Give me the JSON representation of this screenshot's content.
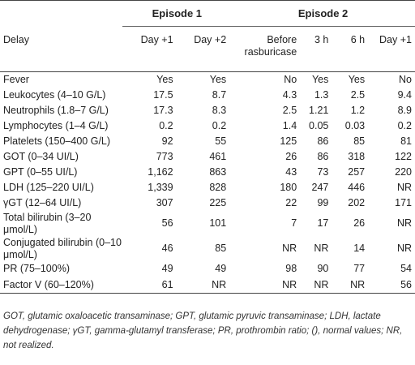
{
  "header": {
    "episode1": "Episode 1",
    "episode2": "Episode 2",
    "delay_label": "Delay",
    "delays": [
      "Day +1",
      "Day +2",
      "Before rasburicase",
      "3 h",
      "6 h",
      "Day +1"
    ]
  },
  "rows": [
    {
      "label": "Fever",
      "values": [
        "Yes",
        "Yes",
        "No",
        "Yes",
        "Yes",
        "No"
      ]
    },
    {
      "label": "Leukocytes (4–10 G/L)",
      "values": [
        "17.5",
        "8.7",
        "4.3",
        "1.3",
        "2.5",
        "9.4"
      ]
    },
    {
      "label": "Neutrophils (1.8–7 G/L)",
      "values": [
        "17.3",
        "8.3",
        "2.5",
        "1.21",
        "1.2",
        "8.9"
      ]
    },
    {
      "label": "Lymphocytes (1–4 G/L)",
      "values": [
        "0.2",
        "0.2",
        "1.4",
        "0.05",
        "0.03",
        "0.2"
      ]
    },
    {
      "label": "Platelets (150–400 G/L)",
      "values": [
        "92",
        "55",
        "125",
        "86",
        "85",
        "81"
      ]
    },
    {
      "label": "GOT (0–34 UI/L)",
      "values": [
        "773",
        "461",
        "26",
        "86",
        "318",
        "122"
      ]
    },
    {
      "label": "GPT (0–55 UI/L)",
      "values": [
        "1,162",
        "863",
        "43",
        "73",
        "257",
        "220"
      ]
    },
    {
      "label": "LDH (125–220 UI/L)",
      "values": [
        "1,339",
        "828",
        "180",
        "247",
        "446",
        "NR"
      ]
    },
    {
      "label": "γGT (12–64 UI/L)",
      "values": [
        "307",
        "225",
        "22",
        "99",
        "202",
        "171"
      ]
    },
    {
      "label": "Total bilirubin (3–20 μmol/L)",
      "values": [
        "56",
        "101",
        "7",
        "17",
        "26",
        "NR"
      ]
    },
    {
      "label": "Conjugated bilirubin (0–10 μmol/L)",
      "values": [
        "46",
        "85",
        "NR",
        "NR",
        "14",
        "NR"
      ]
    },
    {
      "label": "PR (75–100%)",
      "values": [
        "49",
        "49",
        "98",
        "90",
        "77",
        "54"
      ]
    },
    {
      "label": "Factor V (60–120%)",
      "values": [
        "61",
        "NR",
        "NR",
        "NR",
        "NR",
        "56"
      ]
    }
  ],
  "footnote": "GOT, glutamic oxaloacetic transaminase; GPT, glutamic pyruvic transaminase; LDH, lactate dehydrogenase; γGT, gamma-glutamyl transferase; PR, prothrombin ratio; (), normal values; NR, not realized."
}
